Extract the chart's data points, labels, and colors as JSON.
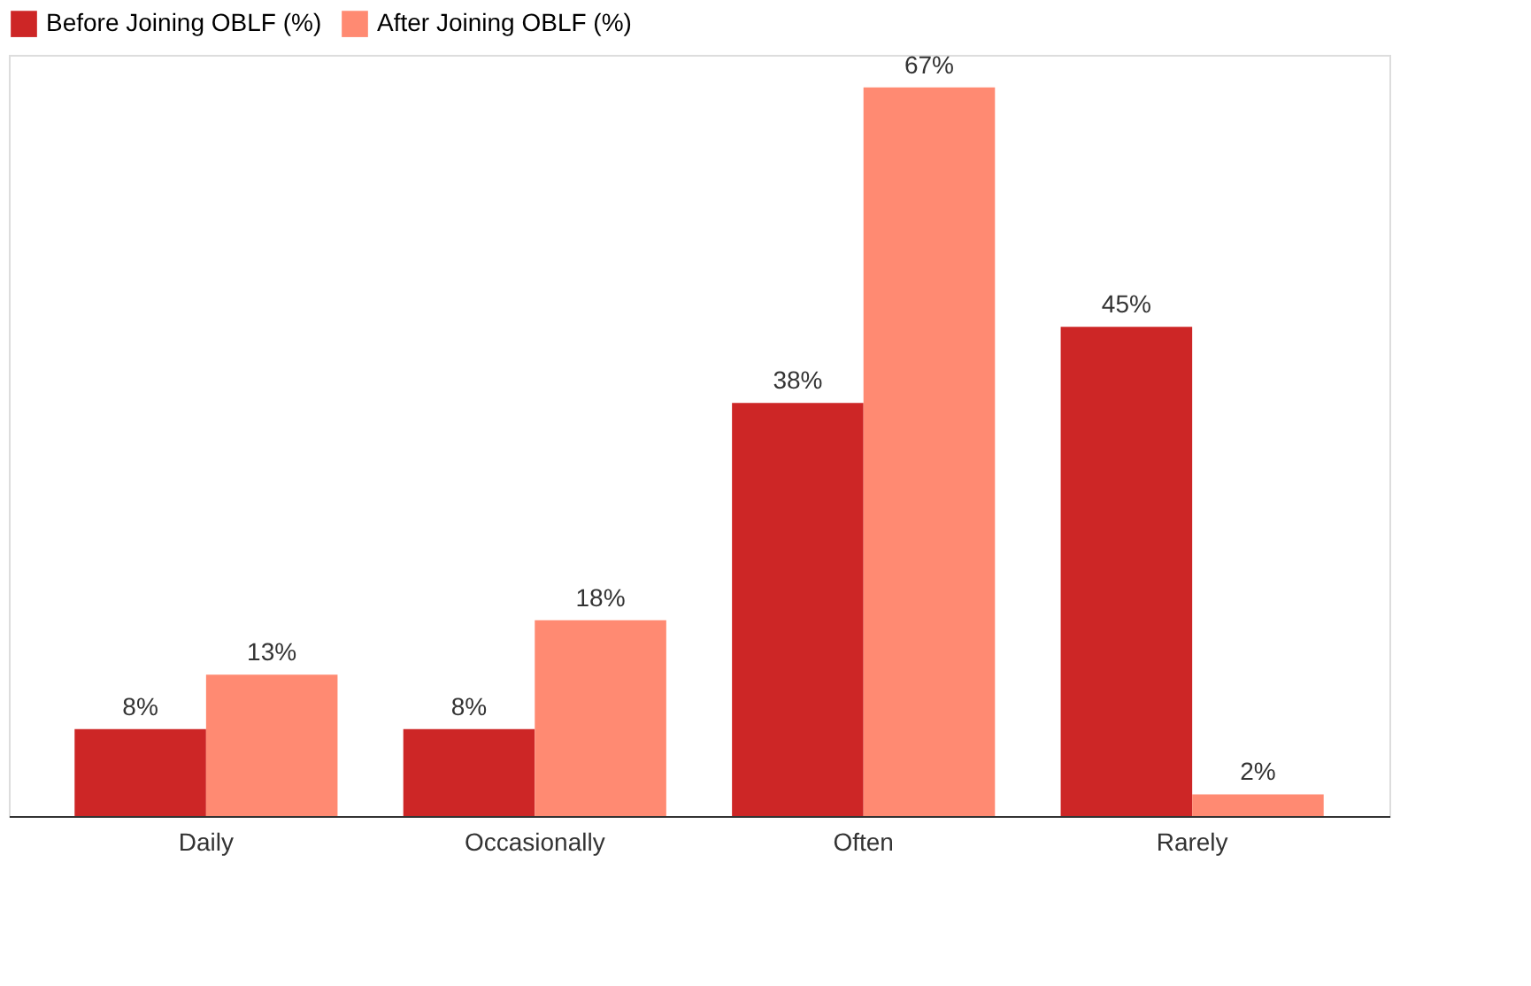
{
  "chart_data": {
    "type": "bar",
    "categories": [
      "Daily",
      "Occasionally",
      "Often",
      "Rarely"
    ],
    "series": [
      {
        "name": "Before Joining OBLF (%)",
        "color": "#cd2626",
        "values": [
          8,
          8,
          38,
          45
        ],
        "value_labels": [
          "8%",
          "8%",
          "38%",
          "45%"
        ]
      },
      {
        "name": "After Joining OBLF (%)",
        "color": "#ff8a72",
        "values": [
          13,
          18,
          67,
          2
        ],
        "value_labels": [
          "13%",
          "18%",
          "67%",
          "2%"
        ]
      }
    ],
    "legend": "top left",
    "grid": false
  }
}
